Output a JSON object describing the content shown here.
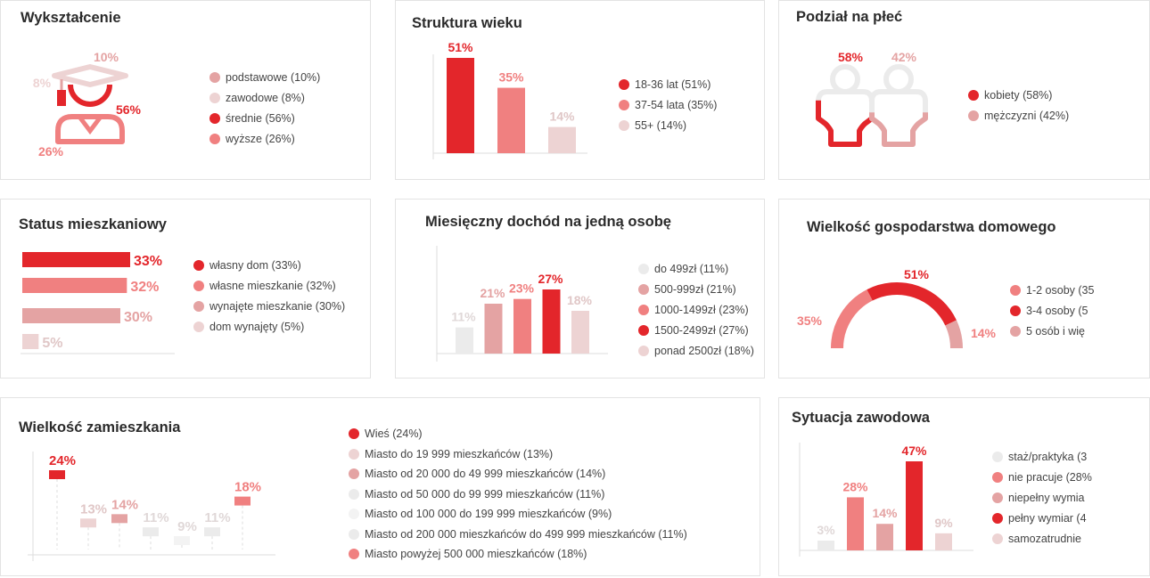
{
  "colors": {
    "red": "#e3262b",
    "salmon": "#f08080",
    "rose": "#e4a3a3",
    "pink": "#edd3d3",
    "light": "#ebebeb",
    "lighter": "#f3f3f3",
    "label_light": "#e0c7c7",
    "grid": "#dddddd"
  },
  "cards": {
    "education": {
      "title": "Wykształcenie"
    },
    "age": {
      "title": "Struktura wieku"
    },
    "gender": {
      "title": "Podział na płeć"
    },
    "housing": {
      "title": "Status mieszkaniowy"
    },
    "income": {
      "title": "Miesięczny dochód na jedną osobę"
    },
    "household": {
      "title": "Wielkość gospodarstwa domowego"
    },
    "residence": {
      "title": "Wielkość zamieszkania"
    },
    "job": {
      "title": "Sytuacja zawodowa"
    }
  },
  "chart_data": [
    {
      "id": "education",
      "type": "pie",
      "title": "Wykształcenie",
      "icon": "graduation-cap-icon",
      "categories": [
        "podstawowe (10%)",
        "zawodowe (8%)",
        "średnie (56%)",
        "wyższe (26%)"
      ],
      "values": [
        10,
        8,
        56,
        26
      ],
      "data_labels": [
        "10%",
        "8%",
        "56%",
        "26%"
      ],
      "colors": [
        "#e4a3a3",
        "#edd3d3",
        "#e3262b",
        "#f08080"
      ],
      "legend": "right"
    },
    {
      "id": "age",
      "type": "bar",
      "title": "Struktura wieku",
      "categories": [
        "18-36 lat (51%)",
        "37-54 lata (35%)",
        "55+ (14%)"
      ],
      "values": [
        51,
        35,
        14
      ],
      "data_labels": [
        "51%",
        "35%",
        "14%"
      ],
      "colors": [
        "#e3262b",
        "#f08080",
        "#edd3d3"
      ],
      "label_colors": [
        "#e3262b",
        "#f08080",
        "#e0c7c7"
      ],
      "ylim": [
        0,
        51
      ],
      "legend": "right"
    },
    {
      "id": "gender",
      "type": "bar",
      "title": "Podział na płeć",
      "icon": "person-icon",
      "categories": [
        "kobiety (58%)",
        "mężczyzni (42%)"
      ],
      "values": [
        58,
        42
      ],
      "data_labels": [
        "58%",
        "42%"
      ],
      "colors": [
        "#e3262b",
        "#e4a3a3"
      ],
      "label_colors": [
        "#e3262b",
        "#e4a3a3"
      ],
      "legend": "right"
    },
    {
      "id": "housing",
      "type": "bar",
      "orientation": "horizontal",
      "title": "Status mieszkaniowy",
      "categories": [
        "własny dom (33%)",
        "własne mieszkanie (32%)",
        "wynajęte mieszkanie (30%)",
        "dom wynajęty (5%)"
      ],
      "values": [
        33,
        32,
        30,
        5
      ],
      "data_labels": [
        "33%",
        "32%",
        "30%",
        "5%"
      ],
      "colors": [
        "#e3262b",
        "#f08080",
        "#e4a3a3",
        "#edd3d3"
      ],
      "label_colors": [
        "#e3262b",
        "#f08080",
        "#e4a3a3",
        "#e0c7c7"
      ],
      "xlim": [
        0,
        33
      ],
      "legend": "right"
    },
    {
      "id": "income",
      "type": "bar",
      "title": "Miesięczny dochód na jedną osobę",
      "categories": [
        "do 499zł (11%)",
        "500-999zł (21%)",
        "1000-1499zł (23%)",
        "1500-2499zł (27%)",
        "ponad 2500zł (18%)"
      ],
      "values": [
        11,
        21,
        23,
        27,
        18
      ],
      "data_labels": [
        "11%",
        "21%",
        "23%",
        "27%",
        "18%"
      ],
      "colors": [
        "#ebebeb",
        "#e4a3a3",
        "#f08080",
        "#e3262b",
        "#edd3d3"
      ],
      "label_colors": [
        "#e0d8d8",
        "#e4a3a3",
        "#f08080",
        "#e3262b",
        "#e0c7c7"
      ],
      "ylim": [
        0,
        27
      ],
      "legend": "right"
    },
    {
      "id": "household",
      "type": "pie",
      "shape": "semi-donut",
      "title": "Wielkość gospodarstwa domowego",
      "categories": [
        "1-2 osoby (35",
        "3-4 osoby (5",
        "5 osób i wię"
      ],
      "values": [
        35,
        51,
        14
      ],
      "data_labels": [
        "35%",
        "51%",
        "14%"
      ],
      "colors": [
        "#f08080",
        "#e3262b",
        "#e4a3a3"
      ],
      "label_colors": [
        "#f08080",
        "#e3262b",
        "#f08080"
      ],
      "legend": "right"
    },
    {
      "id": "residence",
      "type": "bar",
      "style": "floating-markers",
      "title": "Wielkość zamieszkania",
      "categories": [
        "Wieś  (24%)",
        "Miasto do 19 999 mieszkańców  (13%)",
        "Miasto od 20 000 do 49 999 mieszkańców  (14%)",
        "Miasto od 50 000 do 99 999 mieszkańców  (11%)",
        "Miasto od 100 000 do 199 999 mieszkańców  (9%)",
        "Miasto od 200 000 mieszkańców do 499 999 mieszkańców  (11%)",
        "Miasto powyżej 500 000 mieszkańców  (18%)"
      ],
      "values": [
        24,
        13,
        14,
        11,
        9,
        11,
        18
      ],
      "data_labels": [
        "24%",
        "13%",
        "14%",
        "11%",
        "9%",
        "11%",
        "18%"
      ],
      "colors": [
        "#e3262b",
        "#edd3d3",
        "#e4a3a3",
        "#ebebeb",
        "#f3f3f3",
        "#ebebeb",
        "#f08080"
      ],
      "label_colors": [
        "#e3262b",
        "#e0c7c7",
        "#e4a3a3",
        "#e0d8d8",
        "#e0d8d8",
        "#e0d8d8",
        "#f08080"
      ],
      "legend_colors": [
        "#e3262b",
        "#edd3d3",
        "#e4a3a3",
        "#ebebeb",
        "#f3f3f3",
        "#ebebeb",
        "#f08080"
      ],
      "ylim": [
        0,
        24
      ],
      "legend": "right"
    },
    {
      "id": "job",
      "type": "bar",
      "title": "Sytuacja zawodowa",
      "categories": [
        "staż/praktyka (3",
        "nie pracuje (28%",
        "niepełny wymia",
        "pełny wymiar (4",
        "samozatrudnie"
      ],
      "values": [
        3,
        28,
        14,
        47,
        9
      ],
      "data_labels": [
        "3%",
        "28%",
        "14%",
        "47%",
        "9%"
      ],
      "colors": [
        "#ebebeb",
        "#f08080",
        "#e4a3a3",
        "#e3262b",
        "#edd3d3"
      ],
      "label_colors": [
        "#e0d8d8",
        "#f08080",
        "#e4a3a3",
        "#e3262b",
        "#e0c7c7"
      ],
      "ylim": [
        0,
        47
      ],
      "legend": "right"
    }
  ]
}
